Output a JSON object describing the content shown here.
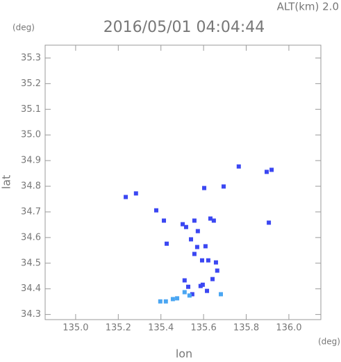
{
  "chart_data": {
    "type": "scatter",
    "title": "2016/05/01 04:04:44",
    "annotation": "ALT(km) 2.0",
    "y_unit": "(deg)",
    "x_unit": "(deg)",
    "xlabel": "lon",
    "ylabel": "lat",
    "xlim": [
      134.857,
      136.15
    ],
    "ylim": [
      34.28,
      35.35
    ],
    "xticks": [
      {
        "value": 135,
        "label": "135.0"
      },
      135.2,
      135.4,
      135.6,
      135.8,
      {
        "value": 136,
        "label": "136.0"
      }
    ],
    "yticks": [
      34.3,
      34.4,
      34.5,
      34.6,
      34.7,
      34.8,
      34.9,
      {
        "value": 35,
        "label": "35.0"
      },
      35.1,
      35.2,
      35.3
    ],
    "series": [
      {
        "color": "#3b47f2",
        "x": [
          135.235,
          135.283,
          135.378,
          135.414,
          135.502,
          135.518,
          135.557,
          135.603,
          135.632,
          135.648,
          135.694,
          135.765,
          135.896,
          135.919,
          135.906,
          135.573,
          135.57,
          135.609,
          135.541,
          135.427,
          135.557,
          135.593,
          135.622,
          135.658,
          135.664,
          135.642,
          135.586,
          135.511,
          135.528,
          135.547,
          135.616,
          135.596
        ],
        "y": [
          34.758,
          34.772,
          34.706,
          34.666,
          34.652,
          34.641,
          34.666,
          34.793,
          34.674,
          34.666,
          34.799,
          34.877,
          34.856,
          34.864,
          34.658,
          34.625,
          34.563,
          34.566,
          34.593,
          34.576,
          34.536,
          34.511,
          34.511,
          34.503,
          34.471,
          34.438,
          34.411,
          34.433,
          34.408,
          34.379,
          34.392,
          34.416
        ]
      },
      {
        "color": "#4aa6f2",
        "x": [
          135.423,
          135.397,
          135.456,
          135.476,
          135.534,
          135.681,
          135.511
        ],
        "y": [
          34.351,
          34.351,
          34.36,
          34.363,
          34.374,
          34.379,
          34.387
        ]
      }
    ]
  }
}
